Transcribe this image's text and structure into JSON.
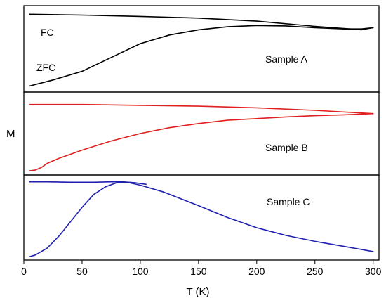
{
  "chart_data": {
    "type": "line",
    "xlabel": "T (K)",
    "ylabel": "M",
    "xlim": [
      0,
      305
    ],
    "xticks": [
      0,
      50,
      100,
      150,
      200,
      250,
      300
    ],
    "panels": [
      {
        "label": "Sample A",
        "color": "#000000",
        "series": [
          {
            "name": "FC",
            "x": [
              5,
              50,
              100,
              150,
              200,
              250,
              290,
              300
            ],
            "y": [
              0.9,
              0.89,
              0.875,
              0.855,
              0.82,
              0.76,
              0.72,
              0.745
            ]
          },
          {
            "name": "ZFC",
            "x": [
              5,
              25,
              50,
              75,
              100,
              125,
              150,
              175,
              200,
              225,
              250,
              275,
              290,
              300
            ],
            "y": [
              0.07,
              0.14,
              0.24,
              0.4,
              0.56,
              0.66,
              0.72,
              0.755,
              0.77,
              0.765,
              0.745,
              0.73,
              0.73,
              0.745
            ]
          }
        ]
      },
      {
        "label": "Sample B",
        "color": "#e02020",
        "series": [
          {
            "name": "FC",
            "x": [
              5,
              50,
              100,
              150,
              200,
              250,
              300
            ],
            "y": [
              0.85,
              0.85,
              0.84,
              0.83,
              0.81,
              0.78,
              0.74
            ]
          },
          {
            "name": "ZFC",
            "x": [
              5,
              10,
              15,
              20,
              30,
              50,
              75,
              100,
              125,
              150,
              175,
              200,
              225,
              250,
              275,
              300
            ],
            "y": [
              0.05,
              0.06,
              0.09,
              0.14,
              0.2,
              0.3,
              0.41,
              0.5,
              0.57,
              0.62,
              0.66,
              0.68,
              0.7,
              0.715,
              0.725,
              0.74
            ]
          }
        ]
      },
      {
        "label": "Sample C",
        "color": "#2020b0",
        "series": [
          {
            "name": "FC",
            "x": [
              5,
              20,
              40,
              60,
              75,
              85,
              95,
              105
            ],
            "y": [
              0.92,
              0.92,
              0.915,
              0.915,
              0.92,
              0.92,
              0.91,
              0.89
            ]
          },
          {
            "name": "ZFC",
            "x": [
              5,
              10,
              20,
              30,
              40,
              50,
              60,
              70,
              80,
              90,
              100,
              120,
              150,
              175,
              200,
              225,
              250,
              275,
              300
            ],
            "y": [
              0.04,
              0.06,
              0.14,
              0.28,
              0.45,
              0.62,
              0.77,
              0.86,
              0.91,
              0.91,
              0.88,
              0.8,
              0.64,
              0.5,
              0.38,
              0.29,
              0.22,
              0.16,
              0.1
            ]
          }
        ]
      }
    ],
    "annotations": [
      "FC",
      "ZFC"
    ]
  }
}
